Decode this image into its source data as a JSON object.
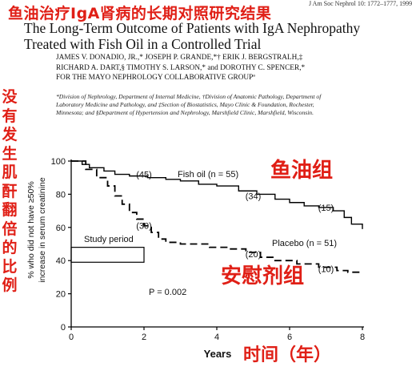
{
  "header": {
    "cn_title": "鱼油治疗IgA肾病的长期对照研究结果",
    "journal_ref": "J Am Soc Nephrol 10: 1772–1777, 1999",
    "title_line1": "The Long-Term Outcome of Patients with IgA Nephropathy",
    "title_line2": "Treated with Fish Oil in a Controlled Trial",
    "authors_line1": "JAMES V. DONADIO, JR.,* JOSEPH P. GRANDE,*† ERIK J. BERGSTRALH,‡",
    "authors_line2": "RICHARD A. DART,§ TIMOTHY S. LARSON,* and DOROTHY C. SPENCER,*",
    "authors_line3": "FOR THE MAYO NEPHROLOGY COLLABORATIVE GROUPª",
    "affiliation_line1": "*Division of Nephrology, Department of Internal Medicine, †Division of Anatomic Pathology, Department of",
    "affiliation_line2": "Laboratory Medicine and Pathology, and ‡Section of Biostatistics, Mayo Clinic & Foundation, Rochester,",
    "affiliation_line3": "Minnesota; and §Department of Hypertension and Nephrology, Marshfield Clinic, Marshfield, Wisconsin."
  },
  "annotations": {
    "vertical_cn": [
      "没",
      "有",
      "发",
      "生",
      "肌",
      "酐",
      "翻",
      "倍",
      "的",
      "比",
      "例"
    ],
    "fish_oil_group_cn": "鱼油组",
    "placebo_group_cn": "安慰剂组",
    "time_cn": "时间（年）"
  },
  "chart_data": {
    "type": "line",
    "ylabel_line1": "% who did not have ≥50%",
    "ylabel_line2": "increase in serum creatinine",
    "xlabel": "Years",
    "xlim": [
      0,
      8
    ],
    "ylim": [
      0,
      100
    ],
    "x_ticks": [
      "0",
      "2",
      "4",
      "6",
      "8"
    ],
    "y_ticks": [
      "0",
      "20",
      "40",
      "60",
      "80",
      "100"
    ],
    "series": [
      {
        "name": "Fish oil (n = 55)",
        "style": "solid",
        "color": "#000000",
        "steps": [
          [
            0,
            100
          ],
          [
            0.3,
            98
          ],
          [
            0.5,
            96
          ],
          [
            0.9,
            94
          ],
          [
            1.2,
            92
          ],
          [
            1.6,
            91
          ],
          [
            2.1,
            90
          ],
          [
            2.6,
            89
          ],
          [
            3.0,
            88
          ],
          [
            3.5,
            86
          ],
          [
            4.0,
            85
          ],
          [
            4.6,
            82
          ],
          [
            5.1,
            80
          ],
          [
            5.6,
            77
          ],
          [
            6.0,
            75
          ],
          [
            6.4,
            73
          ],
          [
            6.8,
            72
          ],
          [
            7.2,
            70
          ],
          [
            7.5,
            66
          ],
          [
            7.7,
            62
          ],
          [
            8.0,
            59
          ]
        ]
      },
      {
        "name": "Placebo (n = 51)",
        "style": "dashed",
        "color": "#000000",
        "steps": [
          [
            0,
            100
          ],
          [
            0.4,
            95
          ],
          [
            0.7,
            90
          ],
          [
            1.0,
            85
          ],
          [
            1.2,
            79
          ],
          [
            1.4,
            74
          ],
          [
            1.6,
            69
          ],
          [
            1.8,
            65
          ],
          [
            2.0,
            61
          ],
          [
            2.2,
            57
          ],
          [
            2.4,
            53
          ],
          [
            2.6,
            51
          ],
          [
            3.0,
            50
          ],
          [
            3.4,
            50
          ],
          [
            3.8,
            48
          ],
          [
            4.3,
            47
          ],
          [
            4.8,
            45
          ],
          [
            5.2,
            42
          ],
          [
            5.6,
            40
          ],
          [
            6.2,
            38
          ],
          [
            6.8,
            36
          ],
          [
            7.3,
            34
          ],
          [
            7.6,
            33
          ],
          [
            8.0,
            33
          ]
        ]
      }
    ],
    "at_risk_labels": [
      {
        "text": "(45)",
        "x": 2.0,
        "y": 92
      },
      {
        "text": "(34)",
        "x": 5.0,
        "y": 79
      },
      {
        "text": "(15)",
        "x": 7.0,
        "y": 72
      },
      {
        "text": "(30)",
        "x": 2.0,
        "y": 61
      },
      {
        "text": "(20)",
        "x": 5.0,
        "y": 44
      },
      {
        "text": "(10)",
        "x": 7.0,
        "y": 35
      }
    ],
    "study_period": {
      "label": "Study period",
      "x_start": 0,
      "x_end": 2,
      "y_low": 39,
      "y_high": 48
    },
    "p_value": "P = 0.002"
  }
}
